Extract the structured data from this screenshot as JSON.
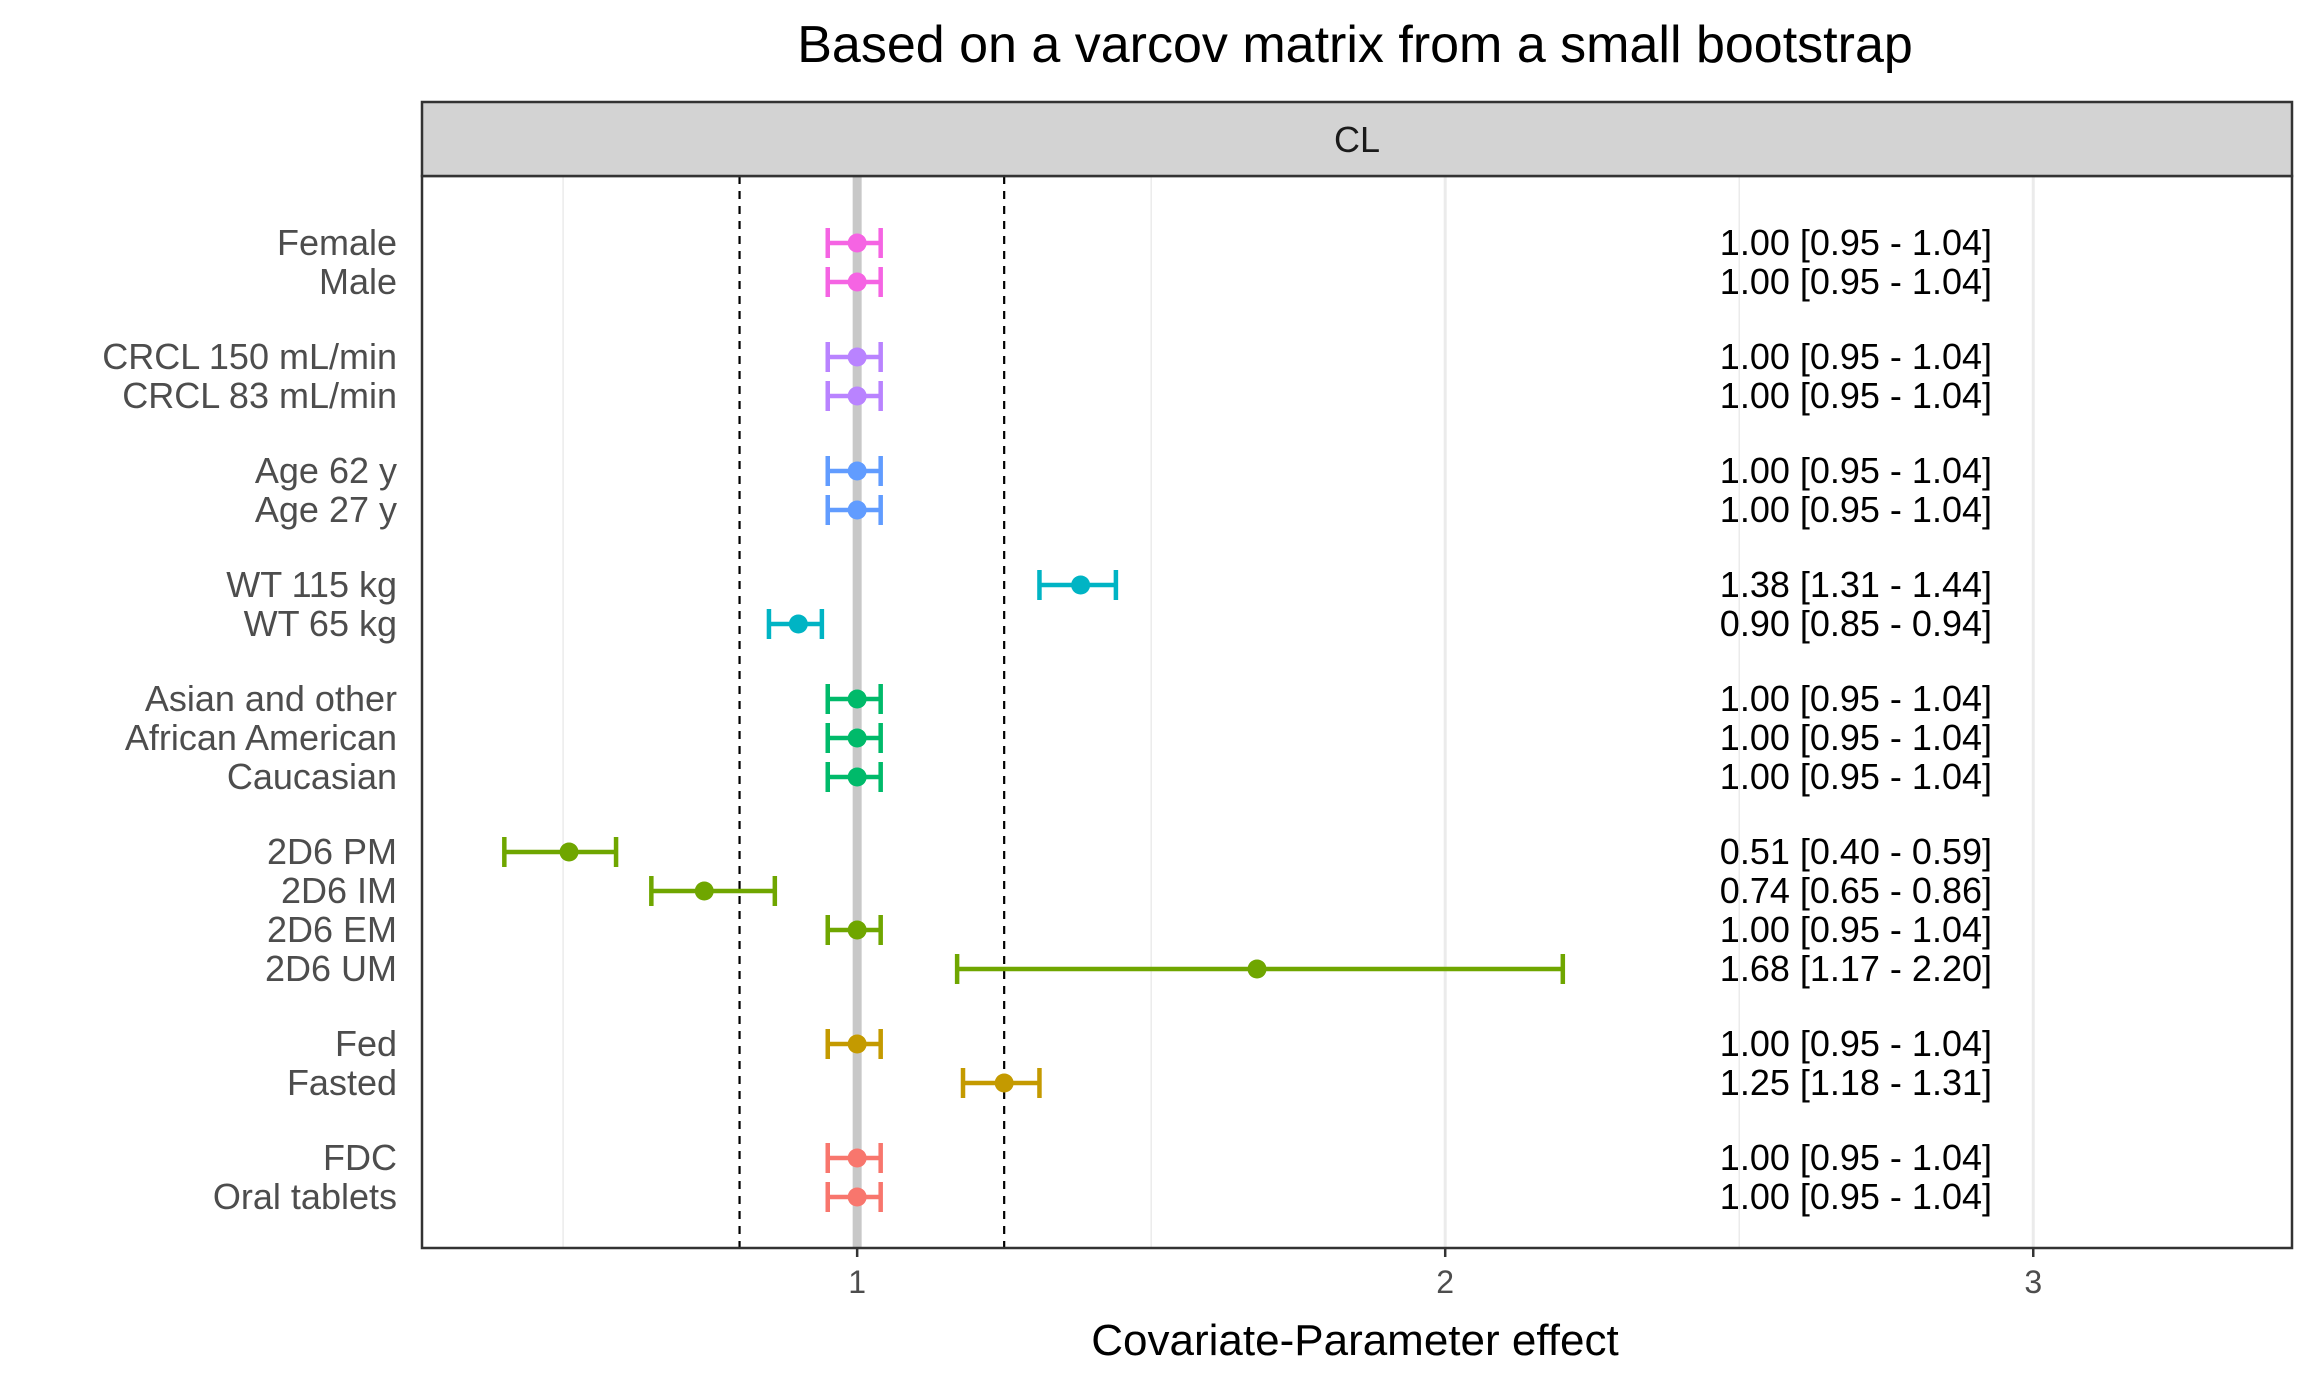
{
  "chart_data": {
    "type": "forest",
    "title": "Based on a varcov matrix from a small bootstrap",
    "facet_label": "CL",
    "xlabel": "Covariate-Parameter effect",
    "ylabel": "",
    "xlim": [
      0.26,
      3.44
    ],
    "x_ticks": [
      1,
      2,
      3
    ],
    "x_tick_labels": [
      "1",
      "2",
      "3"
    ],
    "minor_gridlines": [
      0.5,
      1.5,
      2.5
    ],
    "reference_line": 1,
    "reference_band": [
      0.8,
      1.25
    ],
    "grid": true,
    "legend": "none",
    "groups": [
      {
        "color": "#F564E3",
        "rows": [
          {
            "label": "Female",
            "mid": 1.0,
            "lo": 0.95,
            "hi": 1.04,
            "text": "1.00 [0.95 - 1.04]"
          },
          {
            "label": "Male",
            "mid": 1.0,
            "lo": 0.95,
            "hi": 1.04,
            "text": "1.00 [0.95 - 1.04]"
          }
        ]
      },
      {
        "color": "#B983FF",
        "rows": [
          {
            "label": "CRCL 150 mL/min",
            "mid": 1.0,
            "lo": 0.95,
            "hi": 1.04,
            "text": "1.00 [0.95 - 1.04]"
          },
          {
            "label": "CRCL 83 mL/min",
            "mid": 1.0,
            "lo": 0.95,
            "hi": 1.04,
            "text": "1.00 [0.95 - 1.04]"
          }
        ]
      },
      {
        "color": "#619CFF",
        "rows": [
          {
            "label": "Age 62 y",
            "mid": 1.0,
            "lo": 0.95,
            "hi": 1.04,
            "text": "1.00 [0.95 - 1.04]"
          },
          {
            "label": "Age 27 y",
            "mid": 1.0,
            "lo": 0.95,
            "hi": 1.04,
            "text": "1.00 [0.95 - 1.04]"
          }
        ]
      },
      {
        "color": "#00B4C4",
        "rows": [
          {
            "label": "WT 115 kg",
            "mid": 1.38,
            "lo": 1.31,
            "hi": 1.44,
            "text": "1.38 [1.31 - 1.44]"
          },
          {
            "label": "WT 65 kg",
            "mid": 0.9,
            "lo": 0.85,
            "hi": 0.94,
            "text": "0.90 [0.85 - 0.94]"
          }
        ]
      },
      {
        "color": "#00BA6A",
        "rows": [
          {
            "label": "Asian and other",
            "mid": 1.0,
            "lo": 0.95,
            "hi": 1.04,
            "text": "1.00 [0.95 - 1.04]"
          },
          {
            "label": "African American",
            "mid": 1.0,
            "lo": 0.95,
            "hi": 1.04,
            "text": "1.00 [0.95 - 1.04]"
          },
          {
            "label": "Caucasian",
            "mid": 1.0,
            "lo": 0.95,
            "hi": 1.04,
            "text": "1.00 [0.95 - 1.04]"
          }
        ]
      },
      {
        "color": "#6FA600",
        "rows": [
          {
            "label": "2D6 PM",
            "mid": 0.51,
            "lo": 0.4,
            "hi": 0.59,
            "text": "0.51 [0.40 - 0.59]"
          },
          {
            "label": "2D6 IM",
            "mid": 0.74,
            "lo": 0.65,
            "hi": 0.86,
            "text": "0.74 [0.65 - 0.86]"
          },
          {
            "label": "2D6 EM",
            "mid": 1.0,
            "lo": 0.95,
            "hi": 1.04,
            "text": "1.00 [0.95 - 1.04]"
          },
          {
            "label": "2D6 UM",
            "mid": 1.68,
            "lo": 1.17,
            "hi": 2.2,
            "text": "1.68 [1.17 - 2.20]"
          }
        ]
      },
      {
        "color": "#C49A00",
        "rows": [
          {
            "label": "Fed",
            "mid": 1.0,
            "lo": 0.95,
            "hi": 1.04,
            "text": "1.00 [0.95 - 1.04]"
          },
          {
            "label": "Fasted",
            "mid": 1.25,
            "lo": 1.18,
            "hi": 1.31,
            "text": "1.25 [1.18 - 1.31]"
          }
        ]
      },
      {
        "color": "#F8766D",
        "rows": [
          {
            "label": "FDC",
            "mid": 1.0,
            "lo": 0.95,
            "hi": 1.04,
            "text": "1.00 [0.95 - 1.04]"
          },
          {
            "label": "Oral tablets",
            "mid": 1.0,
            "lo": 0.95,
            "hi": 1.04,
            "text": "1.00 [0.95 - 1.04]"
          }
        ]
      }
    ]
  }
}
